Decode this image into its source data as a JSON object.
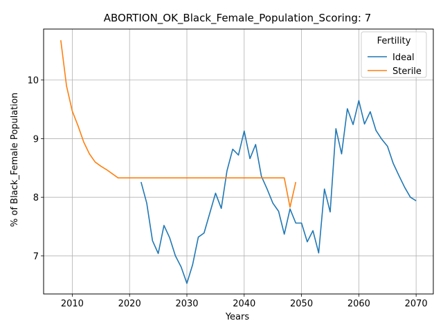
{
  "chart_data": {
    "type": "line",
    "title": "ABORTION_OK_Black_Female_Population_Scoring: 7",
    "xlabel": "Years",
    "ylabel": "% of Black_Female Population",
    "xlim": [
      2005,
      2073
    ],
    "ylim": [
      6.35,
      10.87
    ],
    "xticks": [
      2010,
      2020,
      2030,
      2040,
      2050,
      2060,
      2070
    ],
    "yticks": [
      7,
      8,
      9,
      10
    ],
    "grid": true,
    "legend": {
      "title": "Fertility",
      "placement": "top-right"
    },
    "series": [
      {
        "name": "Ideal",
        "color": "#1f77b4",
        "points": [
          [
            2022,
            8.26
          ],
          [
            2023,
            7.9
          ],
          [
            2024,
            7.26
          ],
          [
            2025,
            7.04
          ],
          [
            2026,
            7.52
          ],
          [
            2027,
            7.31
          ],
          [
            2028,
            7.0
          ],
          [
            2029,
            6.81
          ],
          [
            2030,
            6.53
          ],
          [
            2031,
            6.85
          ],
          [
            2032,
            7.32
          ],
          [
            2033,
            7.39
          ],
          [
            2034,
            7.73
          ],
          [
            2035,
            8.07
          ],
          [
            2036,
            7.81
          ],
          [
            2037,
            8.45
          ],
          [
            2038,
            8.82
          ],
          [
            2039,
            8.72
          ],
          [
            2040,
            9.13
          ],
          [
            2041,
            8.66
          ],
          [
            2042,
            8.9
          ],
          [
            2043,
            8.36
          ],
          [
            2044,
            8.14
          ],
          [
            2045,
            7.9
          ],
          [
            2046,
            7.76
          ],
          [
            2047,
            7.37
          ],
          [
            2048,
            7.8
          ],
          [
            2049,
            7.56
          ],
          [
            2050,
            7.56
          ],
          [
            2051,
            7.24
          ],
          [
            2052,
            7.43
          ],
          [
            2053,
            7.05
          ],
          [
            2054,
            8.14
          ],
          [
            2055,
            7.75
          ],
          [
            2056,
            9.17
          ],
          [
            2057,
            8.74
          ],
          [
            2058,
            9.51
          ],
          [
            2059,
            9.24
          ],
          [
            2060,
            9.65
          ],
          [
            2061,
            9.25
          ],
          [
            2062,
            9.46
          ],
          [
            2063,
            9.14
          ],
          [
            2064,
            8.99
          ],
          [
            2065,
            8.87
          ],
          [
            2066,
            8.58
          ],
          [
            2067,
            8.37
          ],
          [
            2068,
            8.17
          ],
          [
            2069,
            8.0
          ],
          [
            2070,
            7.94
          ]
        ]
      },
      {
        "name": "Sterile",
        "color": "#ff7f0e",
        "points": [
          [
            2008,
            10.68
          ],
          [
            2009,
            9.9
          ],
          [
            2010,
            9.47
          ],
          [
            2011,
            9.22
          ],
          [
            2012,
            8.94
          ],
          [
            2013,
            8.74
          ],
          [
            2014,
            8.6
          ],
          [
            2015,
            8.53
          ],
          [
            2016,
            8.47
          ],
          [
            2017,
            8.4
          ],
          [
            2018,
            8.33
          ],
          [
            2019,
            8.33
          ],
          [
            2020,
            8.33
          ],
          [
            2025,
            8.33
          ],
          [
            2030,
            8.33
          ],
          [
            2035,
            8.33
          ],
          [
            2040,
            8.33
          ],
          [
            2045,
            8.33
          ],
          [
            2047,
            8.33
          ],
          [
            2048,
            7.83
          ],
          [
            2049,
            8.26
          ]
        ]
      }
    ]
  }
}
